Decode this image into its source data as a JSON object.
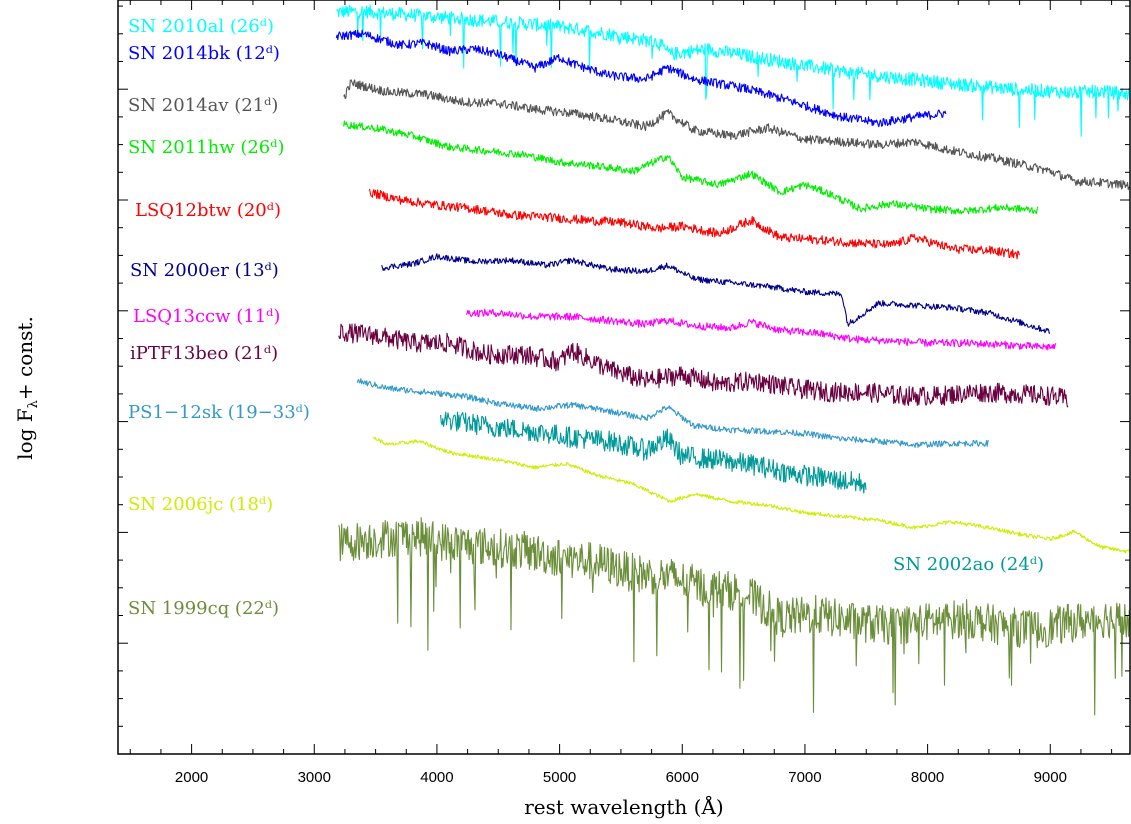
{
  "chart_data": {
    "type": "line",
    "xlabel": "rest wavelength (Å)",
    "ylabel": "log F",
    "ylabel_sub": "λ",
    "ylabel_tail": "+ const.",
    "xlim": [
      1400,
      9650
    ],
    "xticks": [
      2000,
      3000,
      4000,
      5000,
      6000,
      7000,
      8000,
      9000
    ],
    "xtick_labels": [
      "2000",
      "3000",
      "4000",
      "5000",
      "6000",
      "7000",
      "8000",
      "9000"
    ],
    "ylim": [
      0,
      100
    ],
    "grid": false,
    "series": [
      {
        "name": "SN 2010al (26ᵈ)",
        "color": "#00ffff",
        "noise": 0.9,
        "spikes": true,
        "x": [
          3180,
          3400,
          3800,
          4200,
          4600,
          5000,
          5400,
          5800,
          5900,
          6200,
          6600,
          7000,
          7400,
          7800,
          8200,
          8600,
          9000,
          9200,
          9400,
          9650
        ],
        "y": [
          98.4,
          98.5,
          98.0,
          97.5,
          97.0,
          96.5,
          95.5,
          94.4,
          92.8,
          93.5,
          92.4,
          91.3,
          90.3,
          89.6,
          88.9,
          88.3,
          87.9,
          87.7,
          87.9,
          87.5
        ]
      },
      {
        "name": "SN 2014bk (12ᵈ)",
        "color": "#0000ff",
        "noise": 0.6,
        "spikes": false,
        "x": [
          3180,
          3400,
          3700,
          3900,
          4100,
          4300,
          4500,
          4800,
          5000,
          5100,
          5400,
          5700,
          5880,
          6100,
          6500,
          6800,
          7000,
          7300,
          7600,
          7900,
          8150
        ],
        "y": [
          95.2,
          95.5,
          94.0,
          94.3,
          93.2,
          93.5,
          92.8,
          91.0,
          92.4,
          91.6,
          90.0,
          89.5,
          91.0,
          89.5,
          88.3,
          87.0,
          86.0,
          84.5,
          83.7,
          84.5,
          85.0
        ]
      },
      {
        "name": "SN 2014av (21ᵈ)",
        "color": "#555555",
        "noise": 0.6,
        "spikes": false,
        "x": [
          3240,
          3300,
          3600,
          3900,
          4200,
          4500,
          4800,
          5100,
          5400,
          5700,
          5880,
          6100,
          6400,
          6700,
          7000,
          7300,
          7600,
          7900,
          8200,
          8600,
          9000,
          9200,
          9400,
          9650
        ],
        "y": [
          87.0,
          89.0,
          87.8,
          87.5,
          86.5,
          86.3,
          85.5,
          85.0,
          84.2,
          83.2,
          85.0,
          82.7,
          82.0,
          83.0,
          81.5,
          81.2,
          80.8,
          81.2,
          80.0,
          78.8,
          77.3,
          76.0,
          75.8,
          75.4
        ]
      },
      {
        "name": "SN 2011hw (26ᵈ)",
        "color": "#00ee00",
        "noise": 0.5,
        "spikes": false,
        "x": [
          3240,
          3500,
          3800,
          4100,
          4400,
          4700,
          5000,
          5300,
          5600,
          5880,
          6000,
          6300,
          6560,
          6800,
          7000,
          7200,
          7450,
          7700,
          8000,
          8300,
          8600,
          8900
        ],
        "y": [
          83.5,
          83.0,
          82.0,
          80.5,
          80.0,
          79.5,
          78.5,
          78.0,
          77.3,
          79.3,
          76.5,
          75.5,
          77.0,
          74.5,
          75.5,
          74.3,
          72.3,
          73.0,
          72.3,
          72.0,
          72.5,
          72.1
        ]
      },
      {
        "name": "LSQ12btw (20ᵈ)",
        "color": "#ff0000",
        "noise": 0.6,
        "spikes": false,
        "x": [
          3450,
          3700,
          4000,
          4300,
          4600,
          4900,
          5200,
          5500,
          5800,
          6000,
          6300,
          6560,
          6800,
          7100,
          7400,
          7700,
          7900,
          8200,
          8500,
          8750
        ],
        "y": [
          74.5,
          73.5,
          72.8,
          72.3,
          71.5,
          71.2,
          70.8,
          70.5,
          69.7,
          70.0,
          69.0,
          70.8,
          68.5,
          68.2,
          67.8,
          67.5,
          68.5,
          67.0,
          66.8,
          66.2
        ]
      },
      {
        "name": "SN 2000er (13ᵈ)",
        "color": "#00008b",
        "noise": 0.4,
        "spikes": false,
        "x": [
          3550,
          3800,
          4000,
          4300,
          4600,
          4900,
          5100,
          5400,
          5700,
          5880,
          6100,
          6400,
          6700,
          7000,
          7300,
          7350,
          7600,
          7900,
          8200,
          8500,
          8800,
          9000
        ],
        "y": [
          64.5,
          65.0,
          66.0,
          65.3,
          65.5,
          64.8,
          65.5,
          64.3,
          64.0,
          64.8,
          63.0,
          62.5,
          62.0,
          61.3,
          61.0,
          57.0,
          59.8,
          59.5,
          59.2,
          58.5,
          57.0,
          56.0
        ]
      },
      {
        "name": "LSQ13ccw (11ᵈ)",
        "color": "#ff00ff",
        "noise": 0.5,
        "spikes": false,
        "x": [
          4240,
          4500,
          4800,
          5100,
          5400,
          5700,
          5880,
          6100,
          6400,
          6560,
          6800,
          7100,
          7400,
          7700,
          8000,
          8300,
          8600,
          8900,
          9050
        ],
        "y": [
          58.5,
          58.5,
          58.0,
          58.0,
          57.5,
          57.0,
          57.5,
          56.8,
          56.5,
          57.3,
          56.2,
          55.8,
          55.0,
          54.8,
          54.5,
          54.5,
          54.3,
          54.0,
          54.0
        ]
      },
      {
        "name": "iPTF13beo (21ᵈ)",
        "color": "#6b0040",
        "noise": 1.3,
        "spikes": false,
        "x": [
          3200,
          3500,
          3800,
          4100,
          4400,
          4700,
          5000,
          5100,
          5400,
          5700,
          6000,
          6300,
          6600,
          6900,
          7200,
          7500,
          7800,
          8100,
          8400,
          8700,
          9000,
          9150
        ],
        "y": [
          56.0,
          55.5,
          54.5,
          54.5,
          53.0,
          53.0,
          52.0,
          53.5,
          51.0,
          49.5,
          50.3,
          49.0,
          49.5,
          48.5,
          48.0,
          48.0,
          47.5,
          47.5,
          48.0,
          47.8,
          47.5,
          47.0
        ]
      },
      {
        "name": "PS1-12sk (19-33ᵈ)",
        "color": "#3399cc",
        "noise": 0.4,
        "spikes": false,
        "x": [
          3350,
          3600,
          3900,
          4200,
          4500,
          4800,
          5100,
          5400,
          5700,
          5880,
          6100,
          6400,
          6700,
          7000,
          7300,
          7600,
          7900,
          8200,
          8500
        ],
        "y": [
          49.5,
          48.5,
          48.0,
          47.5,
          46.5,
          45.8,
          46.3,
          45.5,
          44.5,
          46.0,
          43.5,
          43.0,
          42.8,
          42.5,
          41.8,
          41.5,
          41.0,
          41.2,
          41.2
        ]
      },
      {
        "name": "SN 2006jc (18ᵈ)",
        "color": "#ccee00",
        "noise": 0.25,
        "spikes": false,
        "x": [
          3480,
          3600,
          3850,
          4100,
          4500,
          4800,
          5050,
          5300,
          5600,
          5900,
          6100,
          6400,
          6700,
          7000,
          7300,
          7600,
          7900,
          8200,
          8500,
          8800,
          9000,
          9200,
          9400,
          9650
        ],
        "y": [
          42.0,
          41.0,
          41.5,
          40.0,
          39.0,
          38.0,
          38.5,
          37.0,
          35.8,
          33.5,
          34.5,
          33.5,
          33.0,
          32.0,
          31.5,
          31.0,
          30.0,
          30.8,
          30.0,
          29.0,
          28.5,
          29.5,
          27.5,
          26.8
        ]
      },
      {
        "name": "SN 2002ao (24ᵈ)",
        "color": "#009999",
        "noise": 1.4,
        "spikes": false,
        "x": [
          4030,
          4200,
          4500,
          4800,
          5100,
          5400,
          5700,
          5880,
          6000,
          6300,
          6600,
          6900,
          7200,
          7500
        ],
        "y": [
          44.5,
          44.0,
          43.3,
          42.8,
          42.0,
          41.5,
          40.3,
          41.8,
          39.5,
          39.0,
          38.3,
          37.2,
          36.5,
          35.8
        ]
      },
      {
        "name": "SN 1999cq (22ᵈ)",
        "color": "#6b8e3a",
        "noise": 2.6,
        "spikes": true,
        "x": [
          3200,
          3500,
          3800,
          4100,
          4400,
          4700,
          5000,
          5300,
          5600,
          5900,
          6200,
          6500,
          6800,
          7100,
          7400,
          7700,
          8000,
          8300,
          8600,
          8900,
          9200,
          9450,
          9650
        ],
        "y": [
          28.0,
          28.5,
          29.0,
          28.0,
          27.5,
          27.0,
          26.0,
          25.5,
          24.0,
          23.5,
          22.0,
          21.5,
          18.0,
          18.5,
          17.5,
          17.0,
          17.5,
          18.0,
          17.0,
          16.5,
          17.5,
          18.0,
          17.5
        ]
      }
    ],
    "annotations": [
      {
        "text": "SN 2010al (26ᵈ)",
        "color": "#00ffff"
      },
      {
        "text": "SN 2014bk (12ᵈ)",
        "color": "#0000ff"
      },
      {
        "text": "SN 2014av (21ᵈ)",
        "color": "#555555"
      },
      {
        "text": "SN 2011hw (26ᵈ)",
        "color": "#00ee00"
      },
      {
        "text": "LSQ12btw (20ᵈ)",
        "color": "#ff0000"
      },
      {
        "text": "SN 2000er (13ᵈ)",
        "color": "#00008b"
      },
      {
        "text": "LSQ13ccw (11ᵈ)",
        "color": "#ff00ff"
      },
      {
        "text": "iPTF13beo (21ᵈ)",
        "color": "#6b0040"
      },
      {
        "text": "PS1−12sk (19−33ᵈ)",
        "color": "#3399cc"
      },
      {
        "text": "SN 2006jc (18ᵈ)",
        "color": "#ccee00"
      },
      {
        "text": "SN 2002ao (24ᵈ)",
        "color": "#009999"
      },
      {
        "text": "SN 1999cq (22ᵈ)",
        "color": "#6b8e3a"
      }
    ]
  }
}
